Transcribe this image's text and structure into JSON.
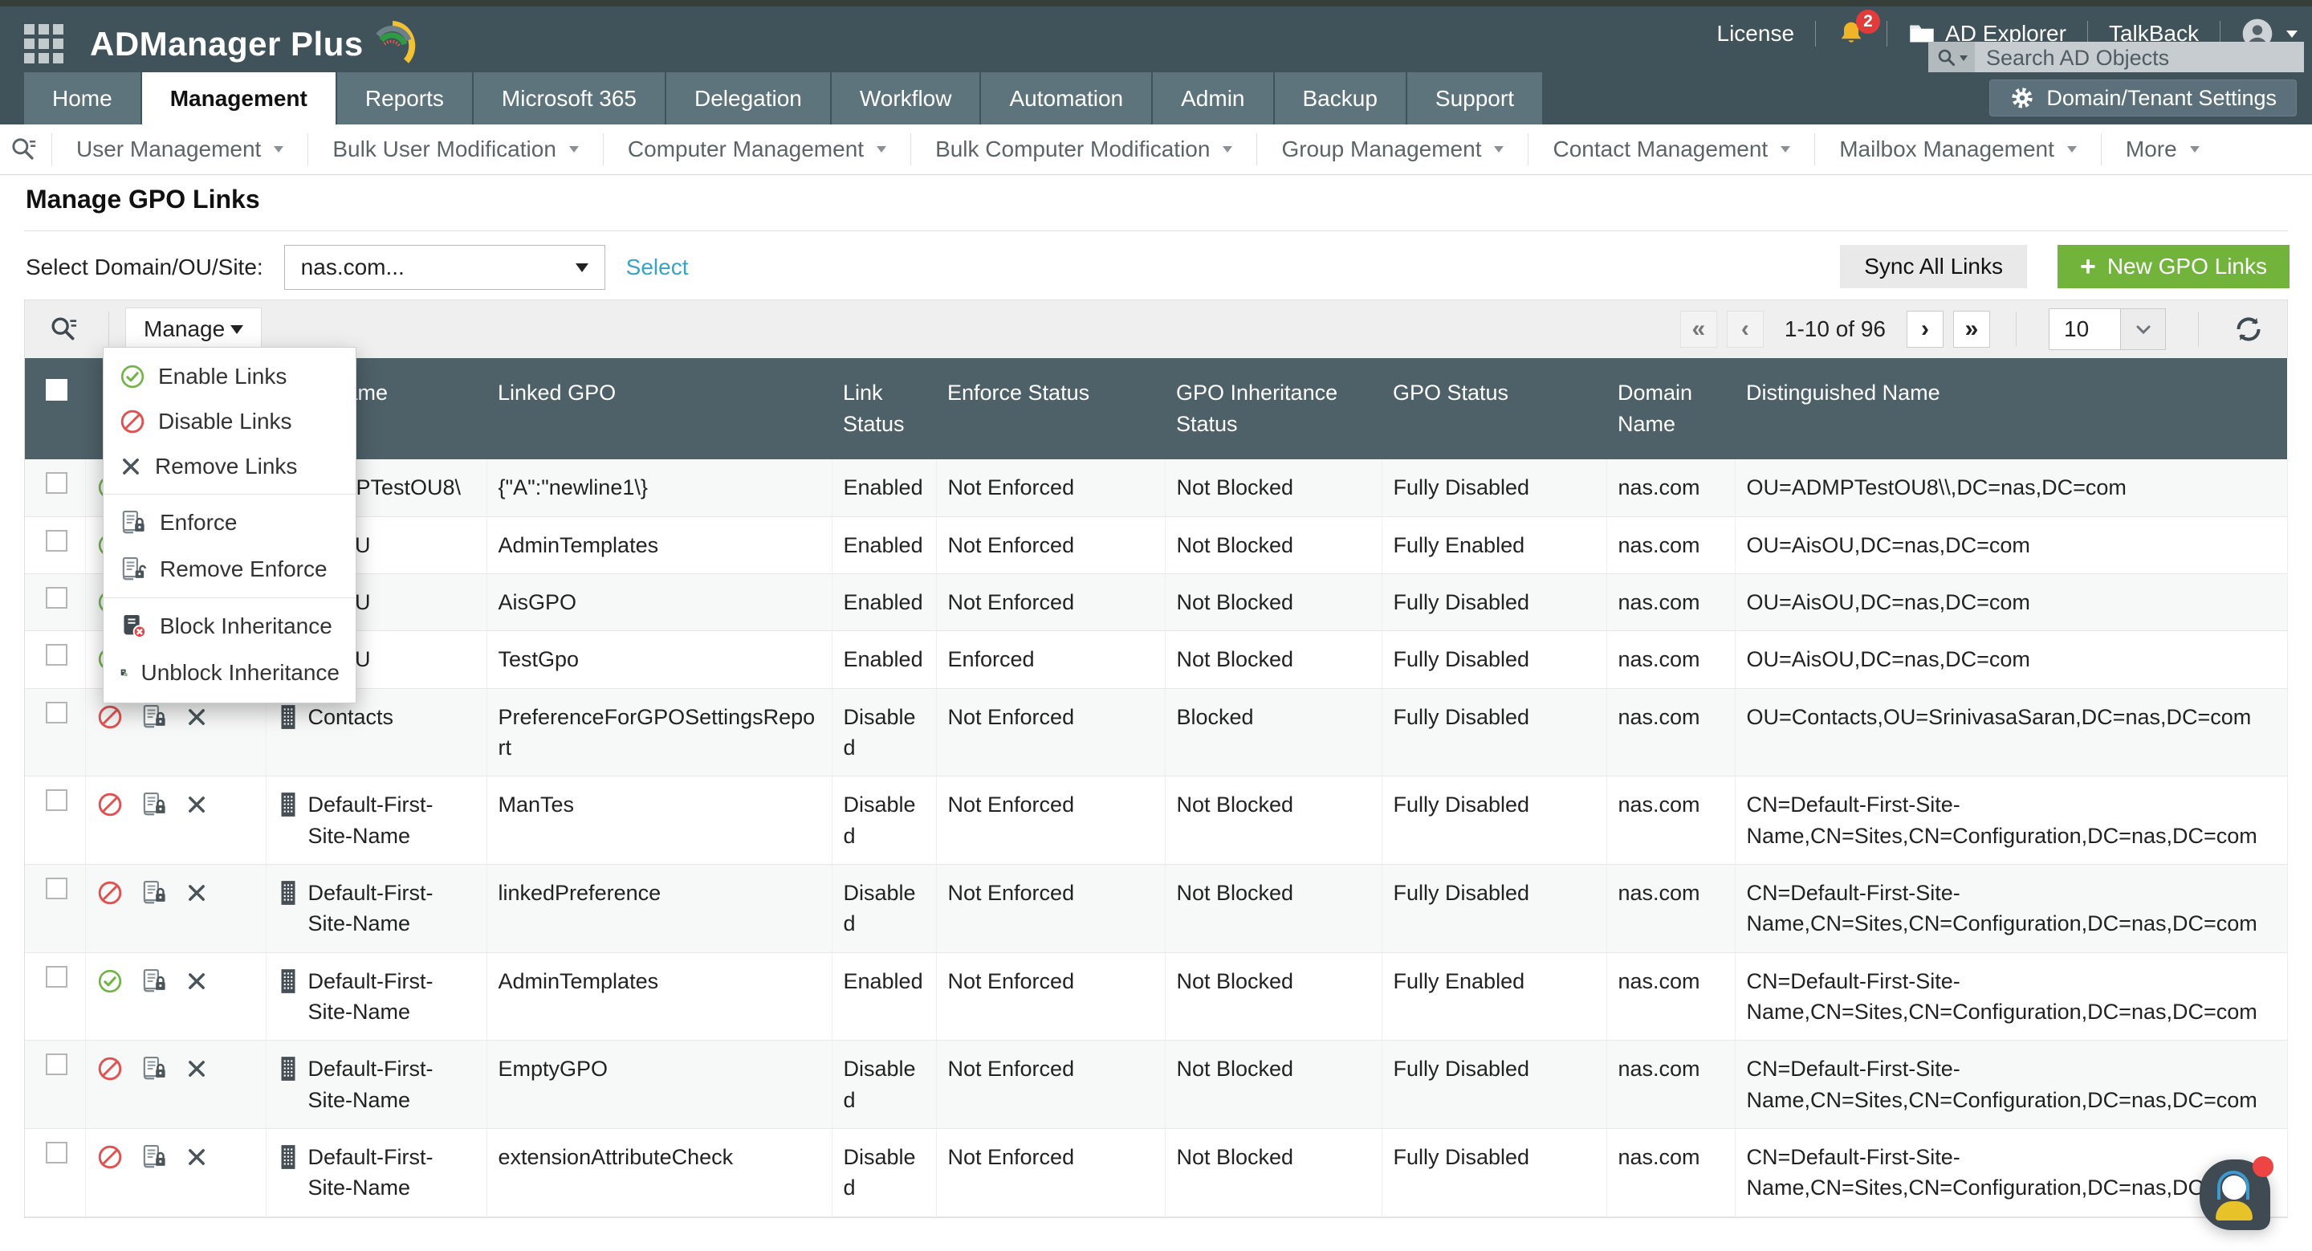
{
  "colors": {
    "header_dark": "#40525a",
    "table_header": "#4e6068",
    "accent_green": "#72b33c",
    "link_teal": "#3aa2c6",
    "enabled_green": "#6fb445",
    "disabled_red": "#e05252",
    "notification_yellow": "#f0b429",
    "notification_red": "#e23b3b"
  },
  "topbar": {
    "brand": "ADManager Plus",
    "license_label": "License",
    "notification_count": "2",
    "ad_explorer_label": "AD Explorer",
    "talkback_label": "TalkBack",
    "search_placeholder": "Search AD Objects",
    "icons": [
      "apps-grid-icon",
      "brand-swirl-icon",
      "bell-icon",
      "folder-icon",
      "user-avatar-icon",
      "search-icon"
    ]
  },
  "nav": {
    "tabs": [
      {
        "label": "Home",
        "active": false
      },
      {
        "label": "Management",
        "active": true
      },
      {
        "label": "Reports",
        "active": false
      },
      {
        "label": "Microsoft 365",
        "active": false
      },
      {
        "label": "Delegation",
        "active": false
      },
      {
        "label": "Workflow",
        "active": false
      },
      {
        "label": "Automation",
        "active": false
      },
      {
        "label": "Admin",
        "active": false
      },
      {
        "label": "Backup",
        "active": false
      },
      {
        "label": "Support",
        "active": false
      }
    ],
    "settings_button": "Domain/Tenant Settings"
  },
  "subnav": {
    "items": [
      "User Management",
      "Bulk User Modification",
      "Computer Management",
      "Bulk Computer Modification",
      "Group Management",
      "Contact Management",
      "Mailbox Management",
      "More"
    ]
  },
  "page": {
    "title": "Manage GPO Links",
    "domain_label": "Select Domain/OU/Site:",
    "domain_value": "nas.com...",
    "select_link": "Select",
    "sync_button": "Sync All Links",
    "new_button": "New GPO Links"
  },
  "toolbar": {
    "manage_button": "Manage",
    "pagination": {
      "first": "«",
      "prev": "‹",
      "range": "1-10 of 96",
      "next": "›",
      "last": "»",
      "page_size": "10"
    }
  },
  "manage_menu": {
    "items": [
      {
        "label": "Enable Links",
        "icon": "circle-check-icon",
        "divider_after": false
      },
      {
        "label": "Disable Links",
        "icon": "circle-slash-icon",
        "divider_after": false
      },
      {
        "label": "Remove Links",
        "icon": "x-icon",
        "divider_after": true
      },
      {
        "label": "Enforce",
        "icon": "scroll-lock-icon",
        "divider_after": false
      },
      {
        "label": "Remove Enforce",
        "icon": "scroll-unlock-icon",
        "divider_after": true
      },
      {
        "label": "Block Inheritance",
        "icon": "scroll-block-icon",
        "divider_after": false
      },
      {
        "label": "Unblock Inheritance",
        "icon": "scroll-unblock-icon",
        "divider_after": false
      }
    ]
  },
  "table": {
    "headers": [
      "",
      "",
      "Name",
      "Linked GPO",
      "Link Status",
      "Enforce Status",
      "GPO Inheritance Status",
      "GPO Status",
      "Domain Name",
      "Distinguished Name"
    ],
    "rows": [
      {
        "name": "ADMPTestOU8\\",
        "linked_gpo": "{\"A\":\"newline1\\}",
        "link_status": "Enabled",
        "enforce_status": "Not Enforced",
        "inheritance_status": "Not Blocked",
        "gpo_status": "Fully Disabled",
        "domain": "nas.com",
        "dn": "OU=ADMPTestOU8\\\\,DC=nas,DC=com"
      },
      {
        "name": "AisOU",
        "linked_gpo": "AdminTemplates",
        "link_status": "Enabled",
        "enforce_status": "Not Enforced",
        "inheritance_status": "Not Blocked",
        "gpo_status": "Fully Enabled",
        "domain": "nas.com",
        "dn": "OU=AisOU,DC=nas,DC=com"
      },
      {
        "name": "AisOU",
        "linked_gpo": "AisGPO",
        "link_status": "Enabled",
        "enforce_status": "Not Enforced",
        "inheritance_status": "Not Blocked",
        "gpo_status": "Fully Disabled",
        "domain": "nas.com",
        "dn": "OU=AisOU,DC=nas,DC=com"
      },
      {
        "name": "AisOU",
        "linked_gpo": "TestGpo",
        "link_status": "Enabled",
        "enforce_status": "Enforced",
        "inheritance_status": "Not Blocked",
        "gpo_status": "Fully Disabled",
        "domain": "nas.com",
        "dn": "OU=AisOU,DC=nas,DC=com"
      },
      {
        "name": "Contacts",
        "linked_gpo": "PreferenceForGPOSettingsReport",
        "link_status": "Disabled",
        "enforce_status": "Not Enforced",
        "inheritance_status": "Blocked",
        "gpo_status": "Fully Disabled",
        "domain": "nas.com",
        "dn": "OU=Contacts,OU=SrinivasaSaran,DC=nas,DC=com"
      },
      {
        "name": "Default-First-Site-Name",
        "linked_gpo": "ManTes",
        "link_status": "Disabled",
        "enforce_status": "Not Enforced",
        "inheritance_status": "Not Blocked",
        "gpo_status": "Fully Disabled",
        "domain": "nas.com",
        "dn": "CN=Default-First-Site-Name,CN=Sites,CN=Configuration,DC=nas,DC=com"
      },
      {
        "name": "Default-First-Site-Name",
        "linked_gpo": "linkedPreference",
        "link_status": "Disabled",
        "enforce_status": "Not Enforced",
        "inheritance_status": "Not Blocked",
        "gpo_status": "Fully Disabled",
        "domain": "nas.com",
        "dn": "CN=Default-First-Site-Name,CN=Sites,CN=Configuration,DC=nas,DC=com"
      },
      {
        "name": "Default-First-Site-Name",
        "linked_gpo": "AdminTemplates",
        "link_status": "Enabled",
        "enforce_status": "Not Enforced",
        "inheritance_status": "Not Blocked",
        "gpo_status": "Fully Enabled",
        "domain": "nas.com",
        "dn": "CN=Default-First-Site-Name,CN=Sites,CN=Configuration,DC=nas,DC=com"
      },
      {
        "name": "Default-First-Site-Name",
        "linked_gpo": "EmptyGPO",
        "link_status": "Disabled",
        "enforce_status": "Not Enforced",
        "inheritance_status": "Not Blocked",
        "gpo_status": "Fully Disabled",
        "domain": "nas.com",
        "dn": "CN=Default-First-Site-Name,CN=Sites,CN=Configuration,DC=nas,DC=com"
      },
      {
        "name": "Default-First-Site-Name",
        "linked_gpo": "extensionAttributeCheck",
        "link_status": "Disabled",
        "enforce_status": "Not Enforced",
        "inheritance_status": "Not Blocked",
        "gpo_status": "Fully Disabled",
        "domain": "nas.com",
        "dn": "CN=Default-First-Site-Name,CN=Sites,CN=Configuration,DC=nas,DC=com"
      }
    ]
  }
}
